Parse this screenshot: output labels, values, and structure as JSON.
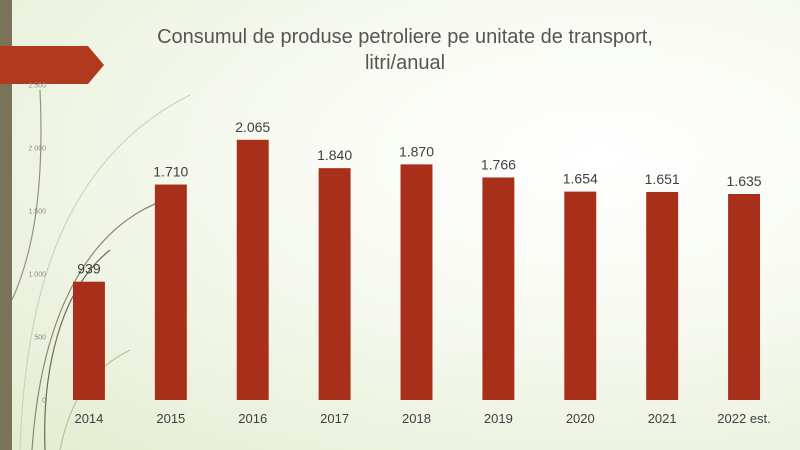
{
  "slide": {
    "title_line1": "Consumul de produse petroliere pe unitate de transport,",
    "title_line2": "litri/anual"
  },
  "colors": {
    "bar": "#a8301a",
    "accent": "#b03a1e",
    "side_bar": "#7a7259",
    "text": "#404040"
  },
  "chart_data": {
    "type": "bar",
    "title": "Consumul de produse petroliere pe unitate de transport, litri/anual",
    "categories": [
      "2014",
      "2015",
      "2016",
      "2017",
      "2018",
      "2019",
      "2020",
      "2021",
      "2022 est."
    ],
    "values": [
      939,
      1710,
      2065,
      1840,
      1870,
      1766,
      1654,
      1651,
      1635
    ],
    "value_labels": [
      "939",
      "1.710",
      "2.065",
      "1.840",
      "1.870",
      "1.766",
      "1.654",
      "1.651",
      "1.635"
    ],
    "y_ticks": [
      0,
      500,
      1000,
      1500,
      2000,
      2500
    ],
    "y_tick_labels": [
      "0",
      "500",
      "1.000",
      "1.500",
      "2.000",
      "2.500"
    ],
    "ylim": [
      0,
      2500
    ],
    "xlabel": "",
    "ylabel": "",
    "grid": false,
    "legend": "none"
  }
}
